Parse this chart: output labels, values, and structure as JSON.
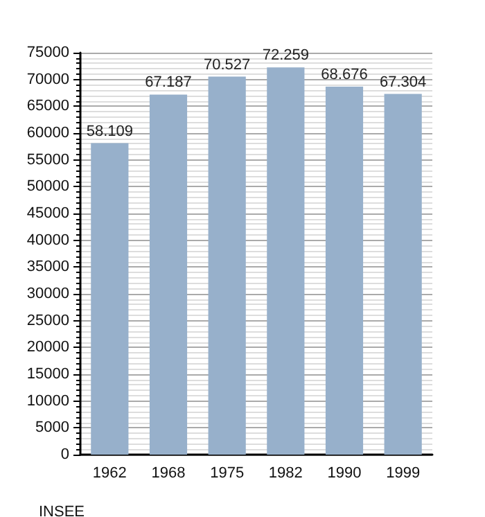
{
  "chart_data": {
    "type": "bar",
    "categories": [
      "1962",
      "1968",
      "1975",
      "1982",
      "1990",
      "1999"
    ],
    "values": [
      58109,
      67187,
      70527,
      72259,
      68676,
      67304
    ],
    "value_labels": [
      "58.109",
      "67.187",
      "70.527",
      "72.259",
      "68.676",
      "67.304"
    ],
    "color": "#97b0cb",
    "ylim": [
      0,
      75000
    ],
    "yticks": [
      0,
      5000,
      10000,
      15000,
      20000,
      25000,
      30000,
      35000,
      40000,
      45000,
      50000,
      55000,
      60000,
      65000,
      70000,
      75000
    ],
    "grid": "y",
    "annotations": [
      "INSEE"
    ]
  }
}
